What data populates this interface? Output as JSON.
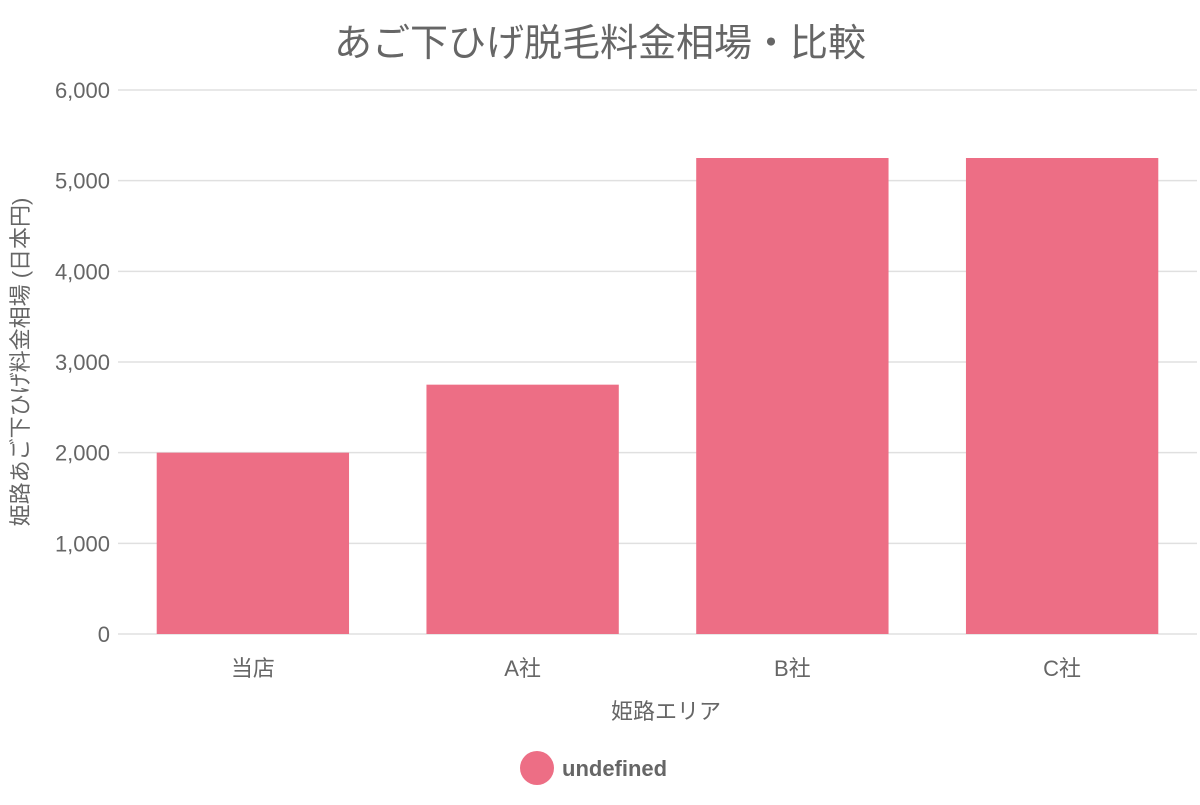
{
  "chart_data": {
    "type": "bar",
    "title": "あご下ひげ脱毛料金相場・比較",
    "xlabel": "姫路エリア",
    "ylabel": "姫路あご下ひげ料金相場 (日本円)",
    "categories": [
      "当店",
      "A社",
      "B社",
      "C社"
    ],
    "series": [
      {
        "name": "undefined",
        "values": [
          2000,
          2750,
          5250,
          5250
        ]
      }
    ],
    "ylim": [
      0,
      6000
    ],
    "yticks": [
      0,
      1000,
      2000,
      3000,
      4000,
      5000,
      6000
    ],
    "ytick_labels": [
      "0",
      "1,000",
      "2,000",
      "3,000",
      "4,000",
      "5,000",
      "6,000"
    ],
    "grid": true,
    "legend_position": "bottom",
    "colors": {
      "bar": "#ed6e85",
      "grid": "#e0e0e0",
      "text": "#666666"
    }
  }
}
